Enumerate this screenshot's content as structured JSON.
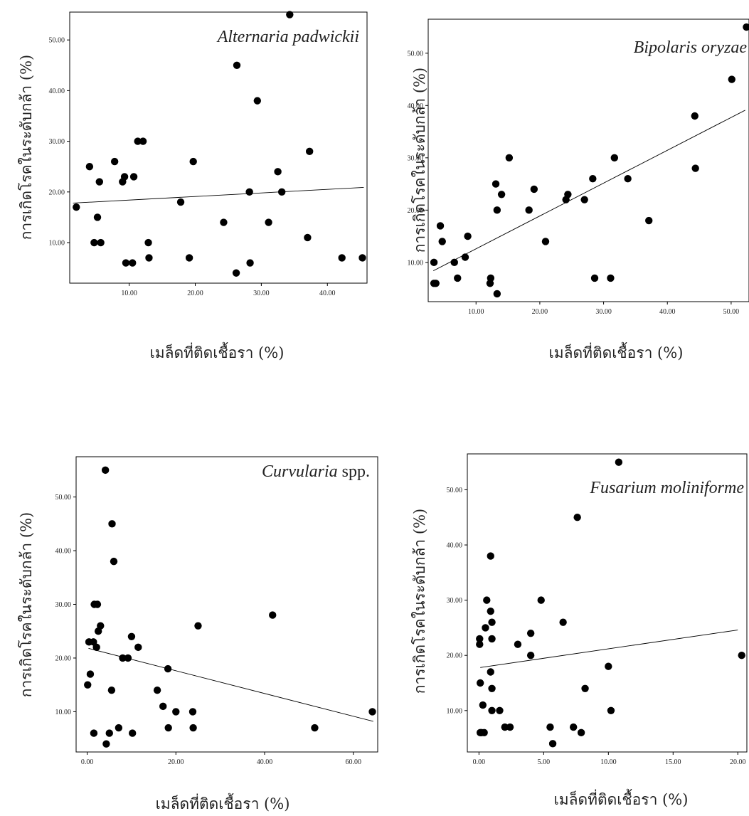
{
  "colors": {
    "frame": "#000000",
    "point": "#000000",
    "fit_line": "#000000",
    "background": "#ffffff"
  },
  "chart_data": [
    {
      "type": "scatter",
      "title_italic": "Alternaria padwickii",
      "title_normal": "",
      "xlabel": "เมล็ดที่ติดเชื้อรา (%)",
      "ylabel": "การเกิดโรคในระดับกล้า (%)",
      "xlim": [
        1.0,
        46.0
      ],
      "ylim": [
        2.0,
        55.5
      ],
      "xticks": [
        10,
        20,
        30,
        40
      ],
      "xtick_labels": [
        "10.00",
        "20.00",
        "30.00",
        "40.00"
      ],
      "yticks": [
        10,
        20,
        30,
        40,
        50
      ],
      "ytick_labels": [
        "10.00",
        "20.00",
        "30.00",
        "40.00",
        "50.00"
      ],
      "trendline": [
        [
          1.5,
          17.8
        ],
        [
          45.5,
          20.9
        ]
      ],
      "points": [
        [
          2,
          17
        ],
        [
          4,
          25
        ],
        [
          4.7,
          10
        ],
        [
          5.2,
          15
        ],
        [
          5.5,
          22
        ],
        [
          5.7,
          10
        ],
        [
          7.8,
          26
        ],
        [
          9,
          22
        ],
        [
          9.3,
          23
        ],
        [
          9.5,
          6
        ],
        [
          10.5,
          6
        ],
        [
          10.7,
          23
        ],
        [
          11.3,
          30
        ],
        [
          12.1,
          30
        ],
        [
          12.9,
          10
        ],
        [
          13,
          7
        ],
        [
          17.8,
          18
        ],
        [
          19.1,
          7
        ],
        [
          19.7,
          26
        ],
        [
          24.3,
          14
        ],
        [
          26.2,
          4
        ],
        [
          26.3,
          45
        ],
        [
          28.2,
          20
        ],
        [
          28.3,
          6
        ],
        [
          29.4,
          38
        ],
        [
          31.1,
          14
        ],
        [
          32.5,
          24
        ],
        [
          33.1,
          20
        ],
        [
          34.3,
          55
        ],
        [
          37,
          11
        ],
        [
          37.3,
          28
        ],
        [
          42.2,
          7
        ],
        [
          45.3,
          7
        ]
      ]
    },
    {
      "type": "scatter",
      "title_italic": "Bipolaris oryzae",
      "title_normal": "",
      "xlabel": "เมล็ดที่ติดเชื้อรา (%)",
      "ylabel": "การเกิดโรคในระดับกล้า (%)",
      "xlim": [
        2.5,
        52.8
      ],
      "ylim": [
        2.5,
        56.5
      ],
      "xticks": [
        10,
        20,
        30,
        40,
        50
      ],
      "xtick_labels": [
        "10.00",
        "20.00",
        "30.00",
        "40.00",
        "50.00"
      ],
      "yticks": [
        10,
        20,
        30,
        40,
        50
      ],
      "ytick_labels": [
        "10.00",
        "20.00",
        "30.00",
        "40.00",
        "50.00"
      ],
      "trendline": [
        [
          3.3,
          8.4
        ],
        [
          52.2,
          39.1
        ]
      ],
      "points": [
        [
          3.4,
          6
        ],
        [
          3.4,
          10
        ],
        [
          3.7,
          6
        ],
        [
          4.4,
          17
        ],
        [
          4.7,
          14
        ],
        [
          6.6,
          10
        ],
        [
          7.1,
          7
        ],
        [
          8.3,
          11
        ],
        [
          8.7,
          15
        ],
        [
          12.2,
          6
        ],
        [
          12.3,
          7
        ],
        [
          13.1,
          25
        ],
        [
          13.3,
          20
        ],
        [
          13.3,
          4
        ],
        [
          14,
          23
        ],
        [
          15.2,
          30
        ],
        [
          18.3,
          20
        ],
        [
          19.1,
          24
        ],
        [
          20.9,
          14
        ],
        [
          24.1,
          22
        ],
        [
          24.4,
          23
        ],
        [
          27,
          22
        ],
        [
          28.3,
          26
        ],
        [
          28.6,
          7
        ],
        [
          31.1,
          7
        ],
        [
          31.7,
          30
        ],
        [
          33.8,
          26
        ],
        [
          37.1,
          18
        ],
        [
          44.3,
          38
        ],
        [
          44.4,
          28
        ],
        [
          50.1,
          45
        ],
        [
          52.4,
          55
        ]
      ]
    },
    {
      "type": "scatter",
      "title_italic": "Curvularia",
      "title_normal": " spp.",
      "xlabel": "เมล็ดที่ติดเชื้อรา (%)",
      "ylabel": "การเกิดโรคในระดับกล้า (%)",
      "xlim": [
        -2.5,
        65.5
      ],
      "ylim": [
        2.5,
        57.5
      ],
      "xticks": [
        0,
        20,
        40,
        60
      ],
      "xtick_labels": [
        "0.00",
        "20.00",
        "40.00",
        "60.00"
      ],
      "yticks": [
        10,
        20,
        30,
        40,
        50
      ],
      "ytick_labels": [
        "10.00",
        "20.00",
        "30.00",
        "40.00",
        "50.00"
      ],
      "trendline": [
        [
          0.3,
          21.8
        ],
        [
          64.5,
          8.2
        ]
      ],
      "points": [
        [
          0.1,
          15
        ],
        [
          0.4,
          23
        ],
        [
          0.7,
          17
        ],
        [
          1.4,
          23
        ],
        [
          1.5,
          6
        ],
        [
          1.6,
          30
        ],
        [
          2.1,
          22
        ],
        [
          2.3,
          30
        ],
        [
          2.5,
          25
        ],
        [
          3,
          26
        ],
        [
          4.1,
          55
        ],
        [
          4.3,
          4
        ],
        [
          5,
          6
        ],
        [
          5.5,
          14
        ],
        [
          5.6,
          45
        ],
        [
          6,
          38
        ],
        [
          7.1,
          7
        ],
        [
          8,
          20
        ],
        [
          9.2,
          20
        ],
        [
          10,
          24
        ],
        [
          10.2,
          6
        ],
        [
          11.5,
          22
        ],
        [
          15.8,
          14
        ],
        [
          17.1,
          11
        ],
        [
          18.2,
          18
        ],
        [
          18.3,
          7
        ],
        [
          20,
          10
        ],
        [
          23.8,
          10
        ],
        [
          23.9,
          7
        ],
        [
          25,
          26
        ],
        [
          41.8,
          28
        ],
        [
          51.3,
          7
        ],
        [
          64.3,
          10
        ]
      ]
    },
    {
      "type": "scatter",
      "title_italic": "Fusarium moliniforme",
      "title_normal": "",
      "xlabel": "เมล็ดที่ติดเชื้อรา (%)",
      "ylabel": "การเกิดโรคในระดับกล้า (%)",
      "xlim": [
        -0.9,
        20.7
      ],
      "ylim": [
        2.5,
        56.5
      ],
      "xticks": [
        0,
        5,
        10,
        15,
        20
      ],
      "xtick_labels": [
        "0.00",
        "5.00",
        "10.00",
        "15.00",
        "20.00"
      ],
      "yticks": [
        10,
        20,
        30,
        40,
        50
      ],
      "ytick_labels": [
        "10.00",
        "20.00",
        "30.00",
        "40.00",
        "50.00"
      ],
      "trendline": [
        [
          0.1,
          17.8
        ],
        [
          20,
          24.6
        ]
      ],
      "points": [
        [
          0.05,
          22
        ],
        [
          0.05,
          23
        ],
        [
          0.1,
          15
        ],
        [
          0.1,
          6
        ],
        [
          0.2,
          6
        ],
        [
          0.3,
          11
        ],
        [
          0.4,
          6
        ],
        [
          0.5,
          25
        ],
        [
          0.6,
          30
        ],
        [
          0.9,
          17
        ],
        [
          0.9,
          38
        ],
        [
          0.9,
          28
        ],
        [
          1,
          26
        ],
        [
          1,
          14
        ],
        [
          1,
          23
        ],
        [
          1,
          10
        ],
        [
          1.6,
          10
        ],
        [
          2,
          7
        ],
        [
          2.4,
          7
        ],
        [
          3,
          22
        ],
        [
          4,
          24
        ],
        [
          4,
          20
        ],
        [
          4.8,
          30
        ],
        [
          5.5,
          7
        ],
        [
          5.7,
          4
        ],
        [
          6.5,
          26
        ],
        [
          7.3,
          7
        ],
        [
          7.6,
          45
        ],
        [
          7.9,
          6
        ],
        [
          8.2,
          14
        ],
        [
          10,
          18
        ],
        [
          10.2,
          10
        ],
        [
          10.8,
          55
        ],
        [
          20.3,
          20
        ]
      ]
    }
  ]
}
